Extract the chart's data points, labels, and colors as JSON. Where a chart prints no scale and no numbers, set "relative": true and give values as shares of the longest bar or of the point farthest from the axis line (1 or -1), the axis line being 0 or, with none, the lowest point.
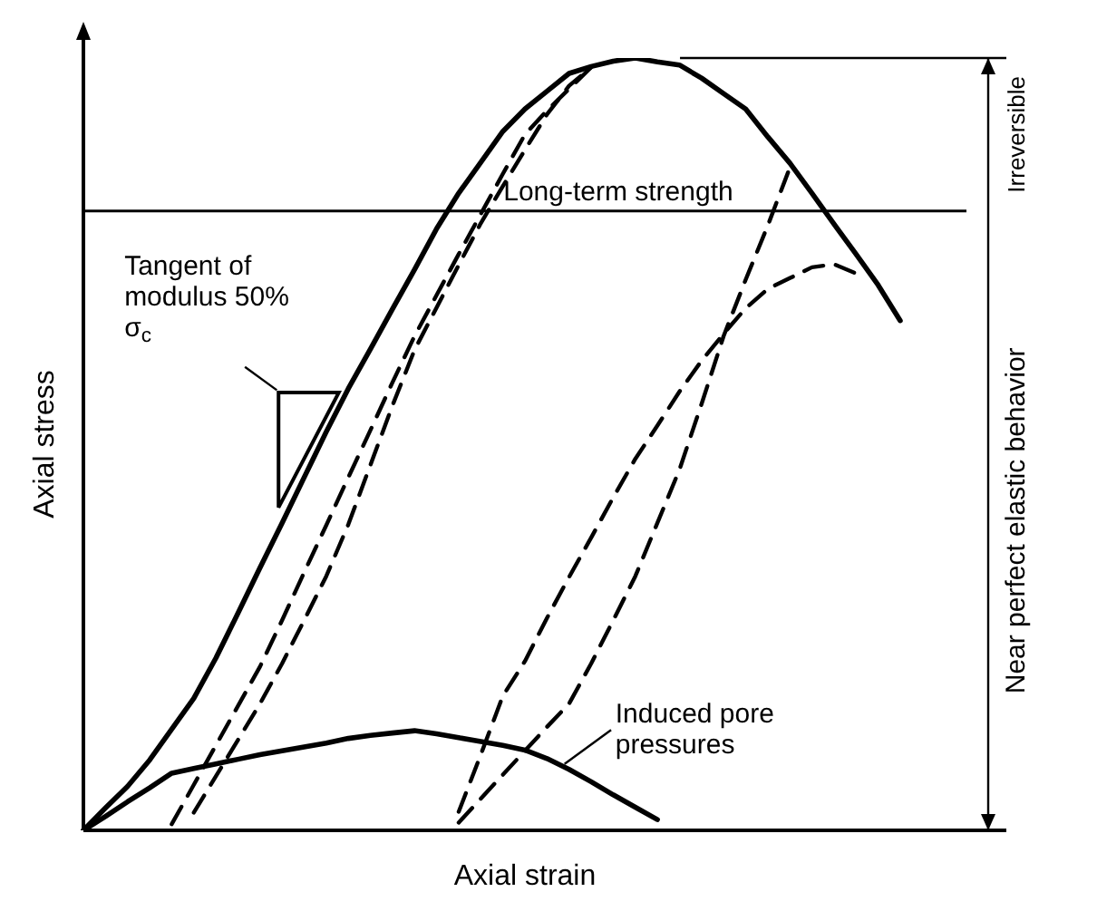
{
  "chart_data": {
    "type": "line",
    "relative": true,
    "xlabel": "Axial strain",
    "ylabel": "Axial stress",
    "grid": false,
    "legend": false,
    "marker": "none",
    "categories": [
      null,
      null,
      null,
      null,
      null,
      null,
      null,
      null,
      null,
      null,
      null,
      null,
      null,
      null,
      null,
      null,
      null,
      null,
      null,
      null,
      null,
      null,
      null,
      null,
      null,
      null,
      null,
      null,
      null,
      null,
      null,
      null,
      null,
      null,
      null,
      null,
      null,
      null,
      null,
      null,
      null
    ],
    "series": [
      {
        "color": "#000000",
        "line_style": "solid",
        "values": [
          0,
          0.029,
          0.057,
          0.091,
          0.131,
          0.171,
          0.223,
          0.281,
          0.34,
          0.398,
          0.457,
          0.516,
          0.572,
          0.623,
          0.675,
          0.726,
          0.779,
          0.825,
          0.865,
          0.905,
          0.934,
          0.957,
          0.98,
          0.989,
          0.996,
          1,
          0.995,
          0.991,
          0.974,
          0.954,
          0.934,
          0.898,
          0.864,
          0.825,
          0.785,
          0.746,
          0.706,
          0.66,
          null,
          null,
          null
        ]
      },
      {
        "color": "#000000",
        "line_style": "dashed",
        "values": [
          null,
          null,
          null,
          null,
          0.008,
          0.059,
          0.11,
          0.161,
          0.212,
          0.272,
          0.334,
          0.395,
          0.457,
          0.518,
          0.58,
          0.64,
          0.693,
          0.746,
          0.798,
          0.85,
          0.901,
          0.932,
          0.96,
          0.988,
          null,
          null,
          null,
          null,
          null,
          null,
          null,
          null,
          null,
          null,
          null,
          null,
          null,
          null,
          null,
          null,
          null
        ]
      },
      {
        "color": "#000000",
        "line_style": "dashed",
        "values": [
          null,
          null,
          null,
          null,
          null,
          0.023,
          0.07,
          0.117,
          0.164,
          0.216,
          0.272,
          0.329,
          0.396,
          0.473,
          0.55,
          0.622,
          0.677,
          0.732,
          0.786,
          0.834,
          0.881,
          0.927,
          0.964,
          0.988,
          null,
          null,
          null,
          null,
          null,
          null,
          null,
          null,
          null,
          null,
          null,
          null,
          null,
          null,
          null,
          null,
          null
        ]
      },
      {
        "color": "#000000",
        "line_style": "dashed",
        "values": [
          null,
          null,
          null,
          null,
          null,
          null,
          null,
          null,
          null,
          null,
          null,
          null,
          null,
          null,
          null,
          null,
          null,
          0.01,
          0.041,
          0.072,
          0.103,
          0.134,
          0.164,
          0.216,
          0.272,
          0.329,
          0.398,
          0.467,
          0.552,
          0.64,
          0.713,
          0.783,
          0.858,
          null,
          null,
          null,
          null,
          null,
          null,
          null,
          null
        ]
      },
      {
        "color": "#000000",
        "line_style": "dashed",
        "values": [
          null,
          null,
          null,
          null,
          null,
          null,
          null,
          null,
          null,
          null,
          null,
          null,
          null,
          null,
          null,
          null,
          null,
          0.024,
          0.098,
          0.174,
          0.219,
          0.275,
          0.328,
          0.379,
          0.431,
          0.481,
          0.524,
          0.568,
          0.608,
          0.643,
          0.676,
          0.701,
          0.715,
          0.729,
          0.733,
          0.721,
          null,
          null,
          null,
          null,
          null
        ]
      },
      {
        "color": "#000000",
        "line_style": "solid",
        "values": [
          0,
          0.018,
          0.037,
          0.055,
          0.074,
          0.08,
          0.086,
          0.092,
          0.098,
          0.103,
          0.108,
          0.113,
          0.119,
          0.123,
          0.126,
          0.129,
          0.125,
          0.12,
          0.115,
          0.11,
          0.104,
          0.093,
          0.079,
          0.063,
          0.046,
          0.03,
          0.014,
          null,
          null,
          null,
          null,
          null,
          null,
          null,
          null,
          null,
          null,
          null,
          null,
          null,
          null
        ]
      }
    ],
    "ref_lines": [
      {
        "axis": "y",
        "value": 0.802,
        "label": "Long-term strength",
        "color": "#000000"
      }
    ],
    "annotations": [
      "Tangent of modulus 50% σ$_{c}$",
      "Induced pore pressures",
      "Irreversible",
      "Near perfect elastic behavior"
    ]
  }
}
